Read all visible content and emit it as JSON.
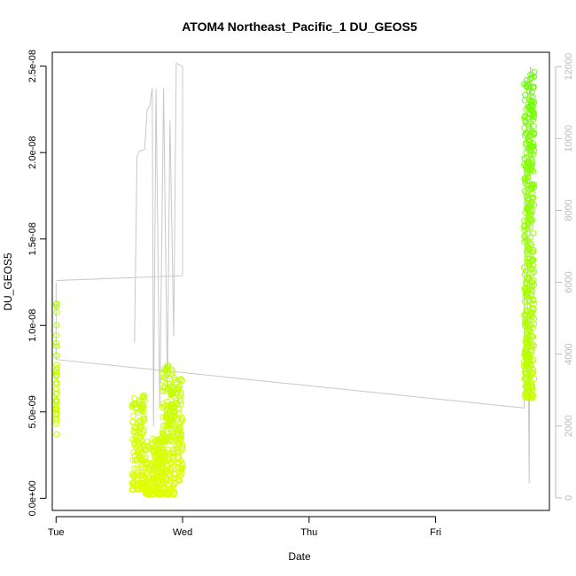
{
  "chart_data": {
    "type": "scatter",
    "title": "ATOM4 Northeast_Pacific_1 DU_GEOS5",
    "xlabel": "Date",
    "ylabel": "DU_GEOS5",
    "x_axis": {
      "range_days": [
        -0.03,
        3.9
      ],
      "ticks": [
        {
          "value": 0,
          "label": "Tue"
        },
        {
          "value": 1,
          "label": "Wed"
        },
        {
          "value": 2,
          "label": "Thu"
        },
        {
          "value": 3,
          "label": "Fri"
        }
      ]
    },
    "y_left": {
      "range": [
        -7e-10,
        2.58e-08
      ],
      "ticks": [
        {
          "value": 0,
          "label": "0.0e+00"
        },
        {
          "value": 5e-09,
          "label": "5.0e-09"
        },
        {
          "value": 1e-08,
          "label": "1.0e-08"
        },
        {
          "value": 1.5e-08,
          "label": "1.5e-08"
        },
        {
          "value": 2e-08,
          "label": "2.0e-08"
        },
        {
          "value": 2.5e-08,
          "label": "2.5e-08"
        }
      ]
    },
    "y_right": {
      "range": [
        -350,
        12400
      ],
      "color": "#bbbbbb",
      "ticks": [
        {
          "value": 0,
          "label": "0"
        },
        {
          "value": 2000,
          "label": "2000"
        },
        {
          "value": 4000,
          "label": "4000"
        },
        {
          "value": 6000,
          "label": "6000"
        },
        {
          "value": 8000,
          "label": "8000"
        },
        {
          "value": 10000,
          "label": "10000"
        },
        {
          "value": 12000,
          "label": "12000"
        }
      ]
    },
    "grid": false,
    "series": [
      {
        "role": "DU_GEOS5 (points, left axis)",
        "color_low": "#e3ff00",
        "color_high": "#66ff00",
        "segments": [
          {
            "x_range": [
              0.0,
              0.005
            ],
            "y_min": 3.5e-09,
            "y_max": 1.21e-08,
            "n": 40
          },
          {
            "x_range": [
              0.6,
              0.7
            ],
            "y_min": 5e-10,
            "y_max": 6e-09,
            "n": 140
          },
          {
            "x_range": [
              0.7,
              0.84
            ],
            "y_min": 2e-10,
            "y_max": 3.5e-09,
            "n": 170
          },
          {
            "x_range": [
              0.84,
              0.94
            ],
            "y_min": 2e-10,
            "y_max": 7.8e-09,
            "n": 200
          },
          {
            "x_range": [
              0.94,
              1.0
            ],
            "y_min": 1e-09,
            "y_max": 7e-09,
            "n": 80
          },
          {
            "x_range": [
              3.7,
              3.78
            ],
            "y_min": 5.8e-09,
            "y_max": 2.48e-08,
            "n": 380
          }
        ]
      },
      {
        "role": "secondary (line, right axis)",
        "color": "#c8c8c8",
        "points": [
          [
            0.0,
            6000
          ],
          [
            0.0,
            3850
          ],
          [
            3.7,
            2500
          ],
          [
            3.7,
            6000
          ],
          [
            3.72,
            9000
          ],
          [
            3.74,
            400
          ],
          [
            3.75,
            12000
          ],
          [
            3.78,
            11800
          ]
        ],
        "segment2": [
          [
            0.0,
            6050
          ],
          [
            1.0,
            6180
          ],
          [
            1.0,
            12000
          ],
          [
            0.95,
            12100
          ],
          [
            0.93,
            4500
          ],
          [
            0.9,
            10500
          ],
          [
            0.88,
            3000
          ],
          [
            0.85,
            11400
          ],
          [
            0.82,
            2500
          ],
          [
            0.79,
            11400
          ],
          [
            0.77,
            2000
          ],
          [
            0.76,
            11400
          ],
          [
            0.74,
            10900
          ],
          [
            0.72,
            10800
          ],
          [
            0.7,
            9700
          ],
          [
            0.66,
            9650
          ],
          [
            0.64,
            9500
          ],
          [
            0.62,
            4300
          ]
        ]
      }
    ]
  }
}
